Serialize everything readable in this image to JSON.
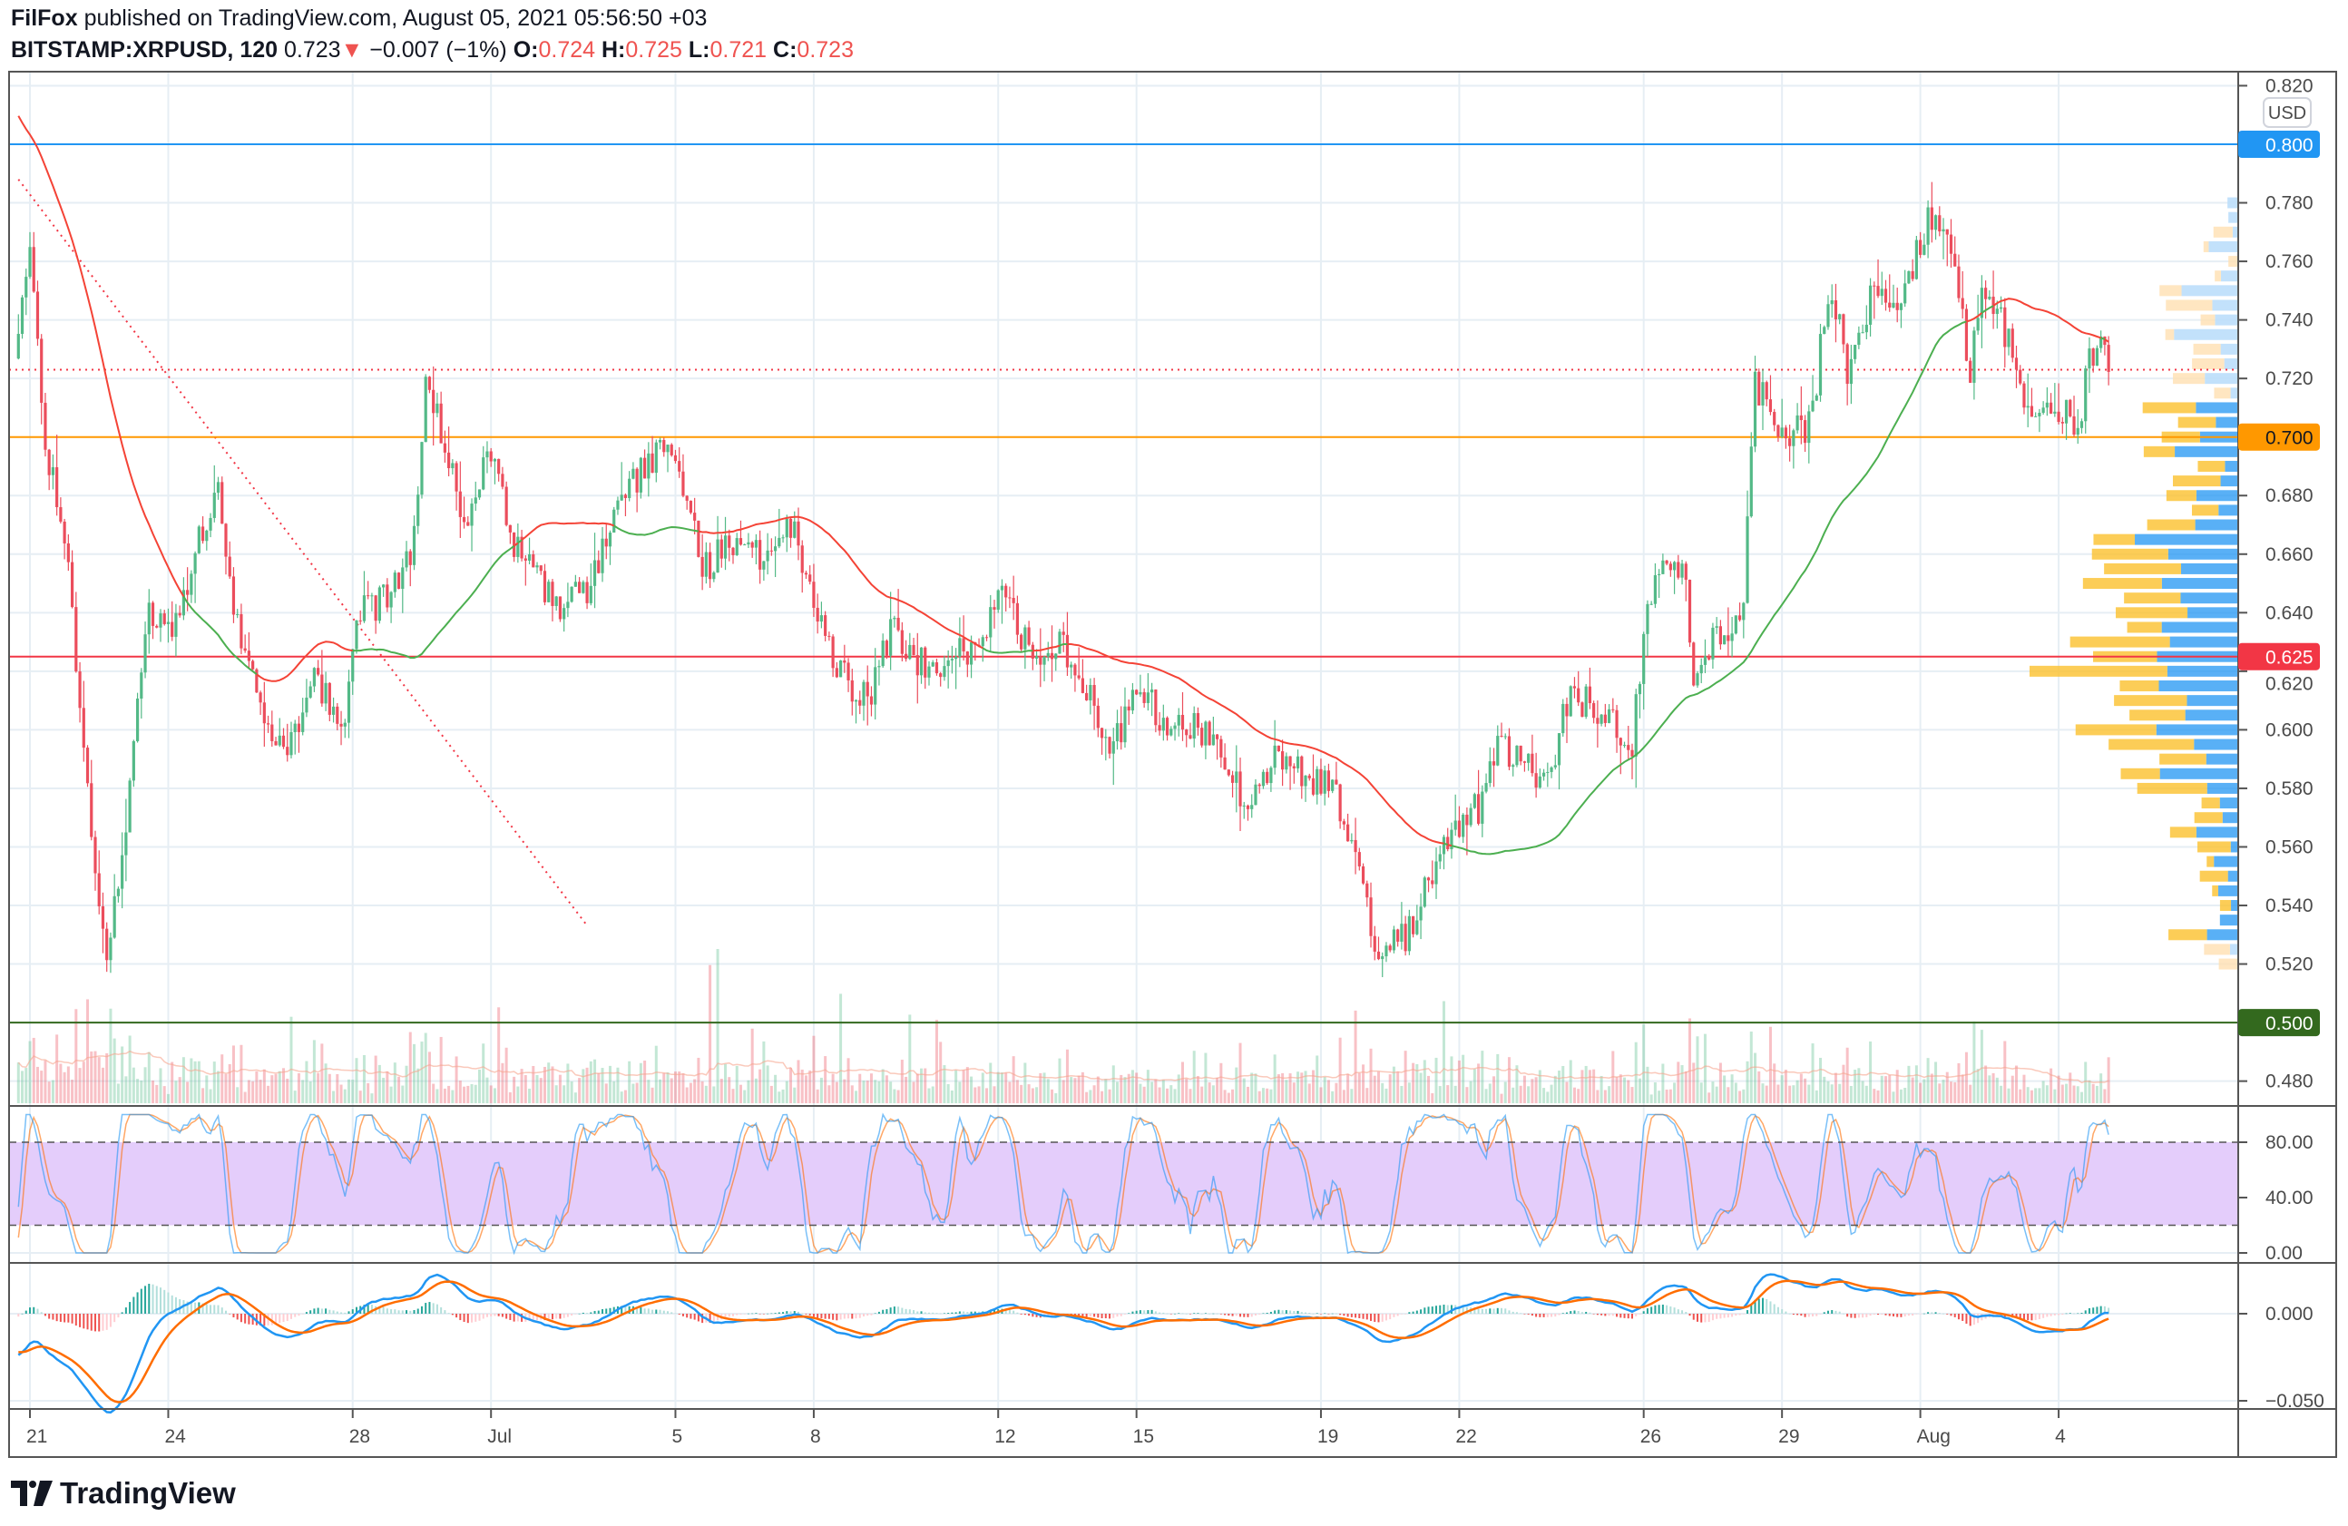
{
  "header": {
    "author": "FilFox",
    "published_text": "published on TradingView.com, August 05, 2021 05:56:50 +03",
    "symbol": "BITSTAMP:XRPUSD, 120",
    "last": "0.723",
    "change_arrow": "▼",
    "change": "−0.007 (−1%)",
    "o_label": "O:",
    "o": "0.724",
    "h_label": "H:",
    "h": "0.725",
    "l_label": "L:",
    "l": "0.721",
    "c_label": "C:",
    "c": "0.723"
  },
  "brand": {
    "name": "TradingView"
  },
  "currency_badge": "USD",
  "colors": {
    "up": "#53b987",
    "down": "#eb4d5c",
    "grid": "#e6eef4",
    "ma_up": "#4caf50",
    "ma_down": "#f44336",
    "stoch_k": "#2196f3",
    "stoch_d": "#ff6d00",
    "stoch_band": "#e4cdfb",
    "macd": "#2196f3",
    "signal": "#ff6d00"
  },
  "chart_data": {
    "type": "candlestick",
    "interval_minutes": 120,
    "x_unit": "days since June 21, 2021",
    "visible_start": -0.32,
    "price_anchors": [
      [
        -6,
        0.9
      ],
      [
        -3,
        0.84
      ],
      [
        -1.2,
        0.78
      ],
      [
        -0.32,
        0.72
      ],
      [
        0,
        0.77
      ],
      [
        0.32,
        0.7
      ],
      [
        0.81,
        0.66
      ],
      [
        1.14,
        0.6
      ],
      [
        1.62,
        0.52
      ],
      [
        1.95,
        0.55
      ],
      [
        2.27,
        0.6
      ],
      [
        2.6,
        0.64
      ],
      [
        3.08,
        0.63
      ],
      [
        3.57,
        0.66
      ],
      [
        4.06,
        0.685
      ],
      [
        4.55,
        0.63
      ],
      [
        5.03,
        0.61
      ],
      [
        5.52,
        0.59
      ],
      [
        6.17,
        0.62
      ],
      [
        6.82,
        0.6
      ],
      [
        7.14,
        0.64
      ],
      [
        7.79,
        0.645
      ],
      [
        8.28,
        0.66
      ],
      [
        8.6,
        0.72
      ],
      [
        8.93,
        0.7
      ],
      [
        9.42,
        0.67
      ],
      [
        10.06,
        0.7
      ],
      [
        10.39,
        0.665
      ],
      [
        11.04,
        0.65
      ],
      [
        11.53,
        0.64
      ],
      [
        12.18,
        0.65
      ],
      [
        12.66,
        0.675
      ],
      [
        13.31,
        0.69
      ],
      [
        13.9,
        0.7
      ],
      [
        14.29,
        0.675
      ],
      [
        14.61,
        0.655
      ],
      [
        15.26,
        0.665
      ],
      [
        15.91,
        0.66
      ],
      [
        16.56,
        0.67
      ],
      [
        17.05,
        0.64
      ],
      [
        17.53,
        0.62
      ],
      [
        18.18,
        0.61
      ],
      [
        18.67,
        0.635
      ],
      [
        19.16,
        0.625
      ],
      [
        19.81,
        0.62
      ],
      [
        20.45,
        0.63
      ],
      [
        21.1,
        0.645
      ],
      [
        21.75,
        0.625
      ],
      [
        22.4,
        0.63
      ],
      [
        23.05,
        0.61
      ],
      [
        23.38,
        0.59
      ],
      [
        24.03,
        0.615
      ],
      [
        24.68,
        0.6
      ],
      [
        25.32,
        0.6
      ],
      [
        25.97,
        0.59
      ],
      [
        26.3,
        0.575
      ],
      [
        26.95,
        0.59
      ],
      [
        27.6,
        0.585
      ],
      [
        28.25,
        0.58
      ],
      [
        28.73,
        0.555
      ],
      [
        29.22,
        0.525
      ],
      [
        29.87,
        0.53
      ],
      [
        30.36,
        0.55
      ],
      [
        30.84,
        0.565
      ],
      [
        31.49,
        0.575
      ],
      [
        31.82,
        0.595
      ],
      [
        32.47,
        0.59
      ],
      [
        32.95,
        0.58
      ],
      [
        33.28,
        0.61
      ],
      [
        33.77,
        0.61
      ],
      [
        34.25,
        0.605
      ],
      [
        34.74,
        0.595
      ],
      [
        35.06,
        0.64
      ],
      [
        35.39,
        0.655
      ],
      [
        35.88,
        0.655
      ],
      [
        36.1,
        0.615
      ],
      [
        36.53,
        0.635
      ],
      [
        37.01,
        0.635
      ],
      [
        37.18,
        0.65
      ],
      [
        37.4,
        0.72
      ],
      [
        37.66,
        0.71
      ],
      [
        37.99,
        0.7
      ],
      [
        38.64,
        0.705
      ],
      [
        39.03,
        0.755
      ],
      [
        39.45,
        0.72
      ],
      [
        39.94,
        0.75
      ],
      [
        40.58,
        0.745
      ],
      [
        41.17,
        0.775
      ],
      [
        41.56,
        0.765
      ],
      [
        41.88,
        0.745
      ],
      [
        42.05,
        0.72
      ],
      [
        42.37,
        0.755
      ],
      [
        42.86,
        0.735
      ],
      [
        43.18,
        0.715
      ],
      [
        43.67,
        0.705
      ],
      [
        44.16,
        0.71
      ],
      [
        44.42,
        0.7
      ],
      [
        44.64,
        0.725
      ],
      [
        44.97,
        0.735
      ],
      [
        45.13,
        0.723
      ]
    ],
    "last_bar": {
      "open": 0.724,
      "high": 0.725,
      "low": 0.721,
      "close": 0.723
    },
    "ma_period": 50,
    "price_axis": {
      "min": 0.47,
      "max": 0.82,
      "ticks": [
        "0.820",
        "0.780",
        "0.760",
        "0.740",
        "0.720",
        "0.680",
        "0.660",
        "0.640",
        "0.620",
        "0.600",
        "0.580",
        "0.560",
        "0.540",
        "0.520",
        "0.480"
      ]
    },
    "horizontal_levels": [
      {
        "price": 0.8,
        "label": "0.800",
        "color": "#2196f3",
        "text_color": "#ffffff"
      },
      {
        "price": 0.7,
        "label": "0.700",
        "color": "#ff9800",
        "text_color": "#131722"
      },
      {
        "price": 0.625,
        "label": "0.625",
        "color": "#f23645",
        "text_color": "#ffffff"
      },
      {
        "price": 0.5,
        "label": "0.500",
        "color": "#33691e",
        "text_color": "#ffffff"
      }
    ],
    "last_price_line": 0.723,
    "trendline": {
      "from": [
        -0.25,
        0.788
      ],
      "to": [
        12.09,
        0.533
      ],
      "color": "#f23645"
    },
    "time_ticks": [
      {
        "d": 0,
        "label": "21"
      },
      {
        "d": 3,
        "label": "24"
      },
      {
        "d": 7,
        "label": "28"
      },
      {
        "d": 10,
        "label": "Jul"
      },
      {
        "d": 14,
        "label": "5"
      },
      {
        "d": 17,
        "label": "8"
      },
      {
        "d": 21,
        "label": "12"
      },
      {
        "d": 24,
        "label": "15"
      },
      {
        "d": 28,
        "label": "19"
      },
      {
        "d": 31,
        "label": "22"
      },
      {
        "d": 35,
        "label": "26"
      },
      {
        "d": 38,
        "label": "29"
      },
      {
        "d": 41,
        "label": "Aug"
      },
      {
        "d": 44,
        "label": "4"
      }
    ],
    "stoch_rsi": {
      "rsi": 14,
      "stoch": 14,
      "k": 3,
      "d": 3,
      "upper": 80,
      "lower": 20,
      "ticks": [
        "80.00",
        "40.00",
        "0.00"
      ],
      "tick_values": [
        80,
        40,
        0
      ]
    },
    "macd": {
      "fast": 12,
      "slow": 26,
      "signal": 9,
      "ticks": [
        "0.000",
        "−0.050"
      ],
      "tick_values": [
        0,
        -0.05
      ]
    }
  }
}
